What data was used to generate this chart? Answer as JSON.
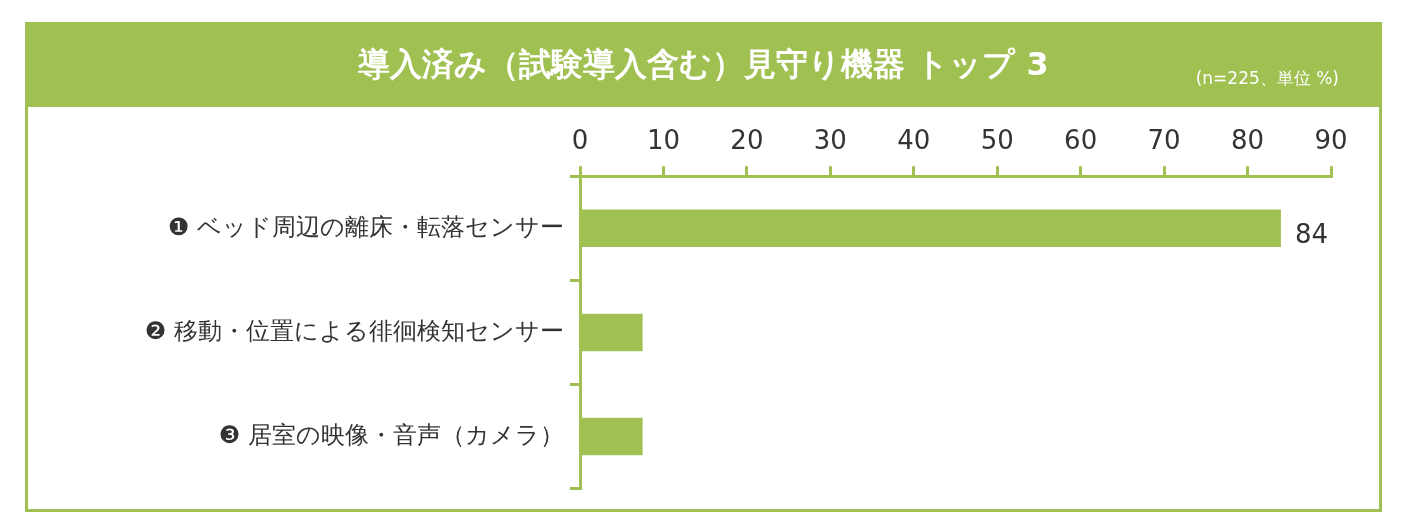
{
  "chart_data": {
    "type": "bar",
    "orientation": "horizontal",
    "title": "導入済み（試験導入含む）見守り機器 トップ 3",
    "subtitle": "(n=225、単位 %)",
    "categories": [
      "❶ ベッド周辺の離床・転落センサー",
      "❷ 移動・位置による徘徊検知センサー",
      "❸ 居室の映像・音声（カメラ）"
    ],
    "values": [
      84,
      7.5,
      7.5
    ],
    "value_labels": [
      "84",
      null,
      null
    ],
    "color": "#a0c152",
    "xlim": [
      0,
      90
    ],
    "xticks": [
      0,
      10,
      20,
      30,
      40,
      50,
      60,
      70,
      80,
      90
    ],
    "grid": false,
    "legend": false
  }
}
